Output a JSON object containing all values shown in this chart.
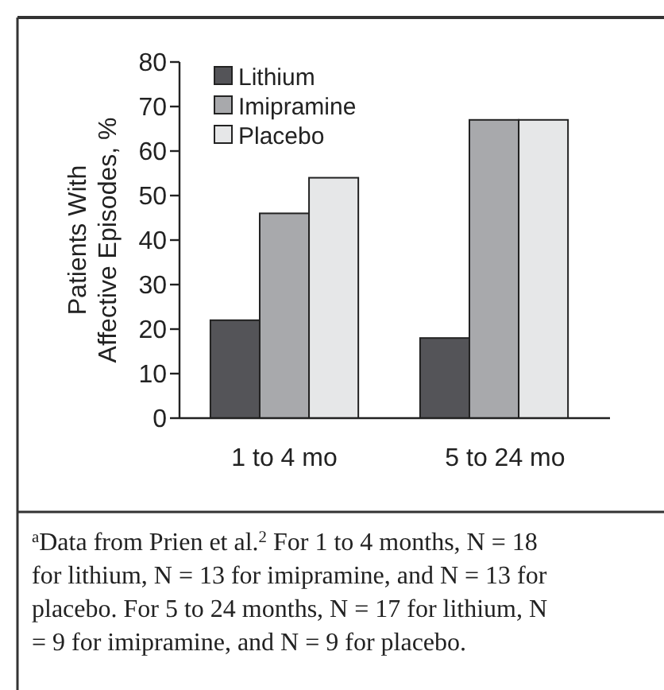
{
  "chart_data": {
    "type": "bar",
    "ylabel": "Patients With\nAffective Episodes, %",
    "categories": [
      "1 to 4 mo",
      "5 to 24 mo"
    ],
    "series": [
      {
        "name": "Lithium",
        "color": "#545458",
        "values": [
          22,
          18
        ]
      },
      {
        "name": "Imipramine",
        "color": "#a8a9ac",
        "values": [
          46,
          67
        ]
      },
      {
        "name": "Placebo",
        "color": "#e6e7e8",
        "values": [
          54,
          67
        ]
      }
    ],
    "ylim": [
      0,
      80
    ],
    "yticks": [
      0,
      10,
      20,
      30,
      40,
      50,
      60,
      70,
      80
    ],
    "legend": "top left",
    "annotations": [
      "$^{a}$Data from Prien et al.$^{2}$ For 1 to 4 months, N = 18 for lithium, N = 13 for imipramine, and N = 13 for placebo. For 5 to 24 months, N = 17 for lithium, N = 9 for imipramine, and N = 9 for placebo."
    ]
  }
}
